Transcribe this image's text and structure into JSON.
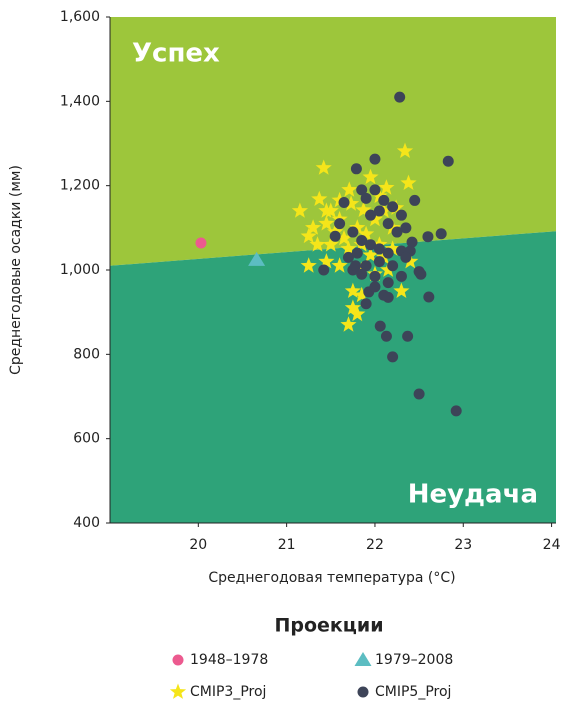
{
  "chart_data": {
    "type": "scatter",
    "x_label": "Среднегодовая температура (°C)",
    "y_label": "Среднегодовые осадки (мм)",
    "xlim": [
      19,
      24.05
    ],
    "ylim": [
      400,
      1600
    ],
    "xticks": [
      20,
      21,
      22,
      23,
      24
    ],
    "yticks": [
      400,
      600,
      800,
      {
        "value": 1000,
        "label": "1,000"
      },
      {
        "value": 1200,
        "label": "1,200"
      },
      {
        "value": 1400,
        "label": "1,400"
      },
      {
        "value": 1600,
        "label": "1,600"
      }
    ],
    "boundary": {
      "x": [
        19,
        24.05
      ],
      "y": [
        1010,
        1092
      ]
    },
    "regions": [
      {
        "label": "Успех",
        "color": "#9dc63b"
      },
      {
        "label": "Неудача",
        "color": "#2ea379"
      }
    ],
    "legend_title": "Проекции",
    "series": [
      {
        "name": "1948–1978",
        "color": "#ec5a8f",
        "marker": "circle",
        "x": [
          20.03
        ],
        "y": [
          1064
        ]
      },
      {
        "name": "1979–2008",
        "color": "#5cbdc2",
        "marker": "triangle",
        "x": [
          20.66
        ],
        "y": [
          1024
        ]
      },
      {
        "name": "CMIP3_Proj",
        "color": "#f5e51a",
        "marker": "star",
        "x": [
          21.42,
          22.34,
          22.38,
          21.15,
          21.37,
          21.71,
          21.73,
          21.87,
          22.13,
          22.24,
          21.95,
          22.05,
          21.5,
          21.6,
          21.3,
          21.25,
          21.45,
          21.55,
          21.65,
          21.8,
          21.9,
          22.0,
          22.1,
          22.2,
          21.35,
          21.5,
          21.7,
          21.85,
          22.05,
          22.2,
          22.4,
          21.25,
          21.45,
          21.6,
          21.85,
          22.0,
          22.1,
          21.75,
          21.85,
          22.3,
          21.75,
          21.8,
          21.7,
          21.95,
          22.15,
          21.45,
          21.6
        ],
        "y": [
          1242,
          1282,
          1206,
          1140,
          1168,
          1190,
          1157,
          1142,
          1195,
          1147,
          1220,
          1175,
          1140,
          1120,
          1100,
          1080,
          1110,
          1090,
          1075,
          1100,
          1085,
          1120,
          1140,
          1100,
          1060,
          1060,
          1050,
          1060,
          1060,
          1050,
          1020,
          1010,
          1020,
          1010,
          1000,
          990,
          1030,
          950,
          940,
          950,
          910,
          895,
          870,
          1035,
          1000,
          1140,
          1165
        ]
      },
      {
        "name": "CMIP5_Proj",
        "color": "#3d4458",
        "marker": "circle",
        "x": [
          22.28,
          22.83,
          22.0,
          21.79,
          21.85,
          22.0,
          22.1,
          22.45,
          21.65,
          21.9,
          22.2,
          22.3,
          21.95,
          22.05,
          22.15,
          22.35,
          22.25,
          21.6,
          21.55,
          21.75,
          21.85,
          21.95,
          22.05,
          22.15,
          22.3,
          22.4,
          22.6,
          22.75,
          22.42,
          21.7,
          21.8,
          21.9,
          22.05,
          22.2,
          22.35,
          21.75,
          21.85,
          22.0,
          22.15,
          22.3,
          22.5,
          22.52,
          21.42,
          21.78,
          21.93,
          22.1,
          22.15,
          22.0,
          21.9,
          22.61,
          22.06,
          22.37,
          22.13,
          22.2,
          22.5,
          22.92
        ],
        "y": [
          1410,
          1258,
          1263,
          1240,
          1190,
          1190,
          1165,
          1165,
          1160,
          1170,
          1150,
          1130,
          1130,
          1140,
          1110,
          1100,
          1090,
          1110,
          1080,
          1090,
          1070,
          1060,
          1050,
          1040,
          1045,
          1045,
          1079,
          1086,
          1066,
          1030,
          1040,
          1010,
          1020,
          1010,
          1030,
          1000,
          990,
          985,
          970,
          985,
          996,
          990,
          1000,
          1010,
          948,
          940,
          935,
          960,
          920,
          936,
          867,
          843,
          843,
          794,
          706,
          666
        ]
      }
    ]
  }
}
